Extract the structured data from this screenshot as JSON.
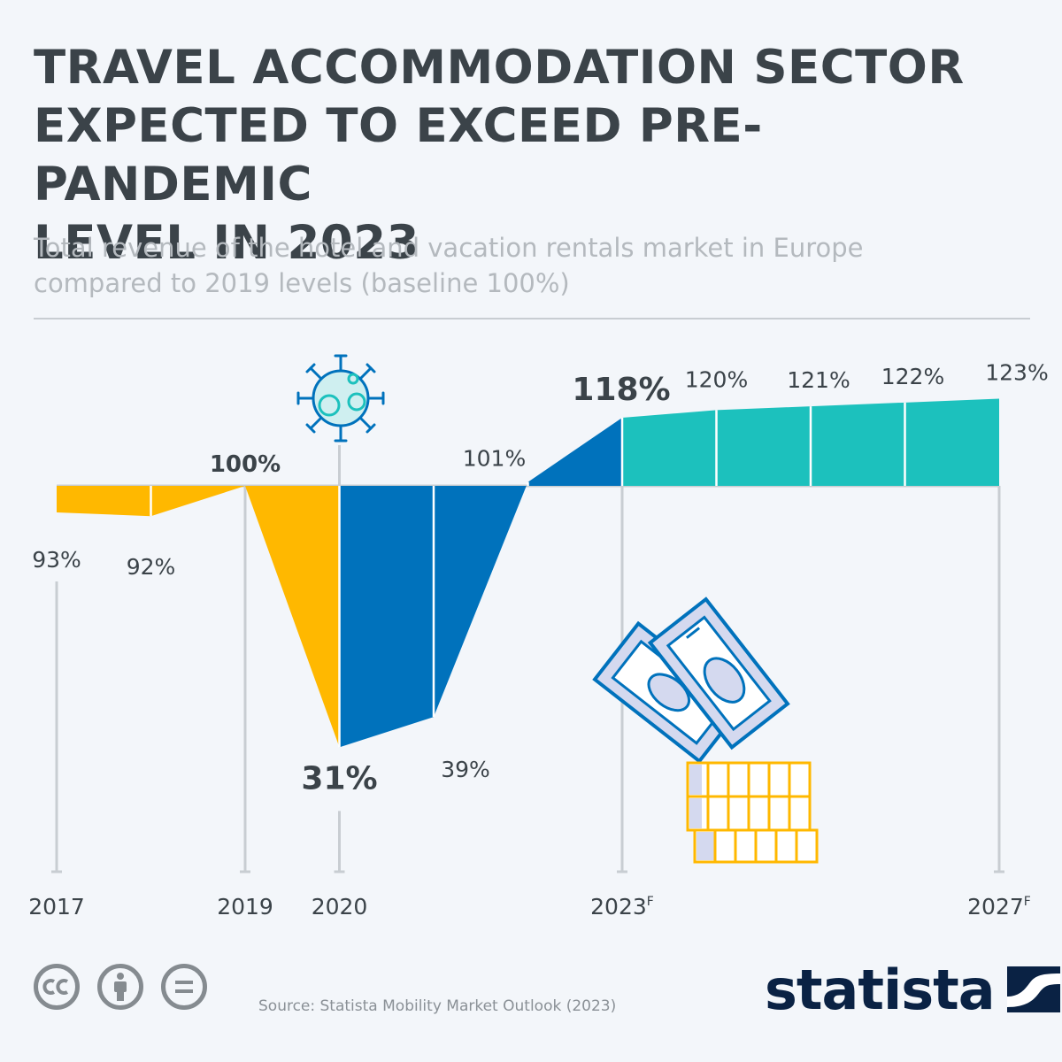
{
  "title_lines": [
    "TRAVEL ACCOMMODATION SECTOR",
    "EXPECTED TO EXCEED PRE-PANDEMIC",
    "LEVEL IN 2023"
  ],
  "subtitle_lines": [
    "Total revenue of the hotel and vacation rentals market in Europe",
    "compared to 2019 levels (baseline 100%)"
  ],
  "source": "Source: Statista Mobility Market Outlook (2023)",
  "brand": "statista",
  "license_icons": [
    "cc-icon",
    "attribution-icon",
    "no-derivatives-icon"
  ],
  "icons": [
    "virus-icon",
    "money-coins-icon",
    "statista-logo-icon"
  ],
  "colors": {
    "pre_pandemic": "#ffb800",
    "pandemic": "#0072bc",
    "forecast": "#1cc1bd",
    "text": "#3b4349",
    "axis": "#c8cdd2"
  },
  "chart_data": {
    "type": "area",
    "baseline": 100,
    "unit": "%",
    "points": [
      {
        "value": 93,
        "label": "93%",
        "year_label": "2017",
        "forecast": false,
        "emphasis": false
      },
      {
        "value": 92,
        "label": "92%",
        "year_label": "",
        "forecast": false,
        "emphasis": false
      },
      {
        "value": 100,
        "label": "100%",
        "year_label": "2019",
        "forecast": false,
        "emphasis": true
      },
      {
        "value": 31,
        "label": "31%",
        "year_label": "2020",
        "forecast": false,
        "emphasis": true
      },
      {
        "value": 39,
        "label": "39%",
        "year_label": "",
        "forecast": false,
        "emphasis": false
      },
      {
        "value": 101,
        "label": "101%",
        "year_label": "",
        "forecast": false,
        "emphasis": false
      },
      {
        "value": 118,
        "label": "118%",
        "year_label": "2023",
        "forecast": true,
        "emphasis": true
      },
      {
        "value": 120,
        "label": "120%",
        "year_label": "",
        "forecast": true,
        "emphasis": false
      },
      {
        "value": 121,
        "label": "121%",
        "year_label": "",
        "forecast": true,
        "emphasis": false
      },
      {
        "value": 122,
        "label": "122%",
        "year_label": "",
        "forecast": true,
        "emphasis": false
      },
      {
        "value": 123,
        "label": "123%",
        "year_label": "2027",
        "forecast": true,
        "emphasis": false
      }
    ],
    "forecast_marker": "F",
    "segment_groups": [
      {
        "from": 0,
        "to": 3,
        "color_key": "pre_pandemic"
      },
      {
        "from": 3,
        "to": 6,
        "color_key": "pandemic"
      },
      {
        "from": 6,
        "to": 10,
        "color_key": "forecast"
      }
    ]
  }
}
